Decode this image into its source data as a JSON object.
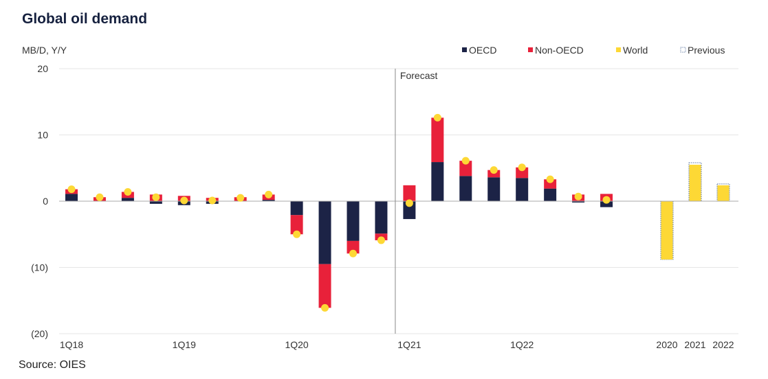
{
  "title": "Global oil demand",
  "source": "Source: OIES",
  "colors": {
    "oecd": "#1c2346",
    "non_oecd": "#e8213a",
    "world": "#fdd835",
    "previous": "#7a8fb0",
    "grid": "#e6e6e6",
    "axis": "#aaaaaa",
    "forecast_line": "#888888"
  },
  "chart_data": {
    "type": "bar",
    "ylabel": "MB/D, Y/Y",
    "ylim": [
      -20,
      20
    ],
    "yticks": [
      20,
      10,
      0,
      -10,
      -20
    ],
    "ytick_labels": [
      "20",
      "10",
      "0",
      "(10)",
      "(20)"
    ],
    "legend": [
      "OECD",
      "Non-OECD",
      "World",
      "Previous"
    ],
    "legend_position": "top-right",
    "forecast_label": "Forecast",
    "forecast_after": "4Q20",
    "quarters": [
      "1Q18",
      "2Q18",
      "3Q18",
      "4Q18",
      "1Q19",
      "2Q19",
      "3Q19",
      "4Q19",
      "1Q20",
      "2Q20",
      "3Q20",
      "4Q20",
      "1Q21",
      "2Q21",
      "3Q21",
      "4Q21",
      "1Q22",
      "2Q22",
      "3Q22",
      "4Q22"
    ],
    "quarter_tick_labels": [
      "1Q18",
      "1Q19",
      "1Q20",
      "1Q21",
      "1Q22"
    ],
    "series": [
      {
        "name": "OECD",
        "values": [
          1.1,
          0.0,
          0.5,
          -0.4,
          -0.6,
          -0.4,
          0.0,
          0.2,
          -2.1,
          -9.5,
          -6.0,
          -4.9,
          -2.7,
          5.9,
          3.8,
          3.6,
          3.5,
          1.9,
          -0.2,
          -0.9
        ]
      },
      {
        "name": "Non-OECD",
        "values": [
          0.7,
          0.6,
          0.9,
          1.0,
          0.8,
          0.5,
          0.6,
          0.8,
          -2.9,
          -6.6,
          -1.9,
          -1.0,
          2.4,
          6.7,
          2.3,
          1.1,
          1.6,
          1.4,
          1.0,
          1.1
        ]
      },
      {
        "name": "World",
        "values": [
          1.8,
          0.6,
          1.4,
          0.6,
          0.1,
          0.1,
          0.5,
          1.0,
          -5.0,
          -16.1,
          -7.9,
          -5.9,
          -0.3,
          12.6,
          6.1,
          4.7,
          5.1,
          3.3,
          0.7,
          0.2
        ]
      }
    ],
    "annual": {
      "years": [
        "2020",
        "2021",
        "2022"
      ],
      "world": [
        -8.8,
        5.5,
        2.4
      ],
      "previous": [
        -8.8,
        5.8,
        2.6
      ]
    }
  }
}
